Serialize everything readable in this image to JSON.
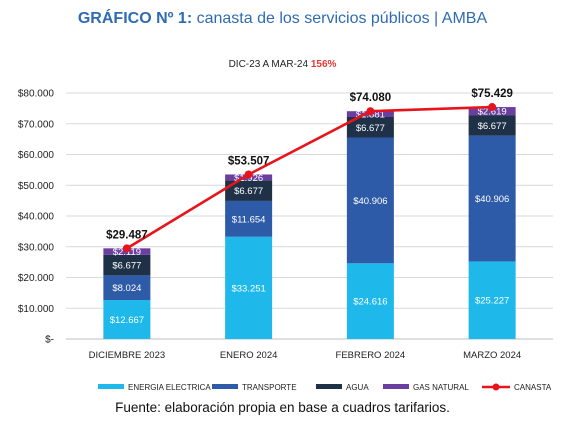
{
  "title": {
    "bold": "GRÁFICO Nº 1:",
    "text": " canasta de los servicios públicos | AMBA"
  },
  "subtitle": {
    "text": "DIC-23 A MAR-24",
    "pct": "156%"
  },
  "source": "Fuente: elaboración propia en base a cuadros tarifarios.",
  "chart_data": {
    "type": "bar",
    "stacked": true,
    "categories": [
      "DICIEMBRE 2023",
      "ENERO 2024",
      "FEBRERO 2024",
      "MARZO 2024"
    ],
    "ylim": [
      0,
      80000
    ],
    "yticks": [
      0,
      10000,
      20000,
      30000,
      40000,
      50000,
      60000,
      70000,
      80000
    ],
    "ytick_labels": [
      "$-",
      "$10.000",
      "$20.000",
      "$30.000",
      "$40.000",
      "$50.000",
      "$60.000",
      "$70.000",
      "$80.000"
    ],
    "grid": true,
    "legend_position": "bottom",
    "series": [
      {
        "name": "ENERGIA ELECTRICA",
        "color": "#1eb8ea",
        "label_color": "#ffffff",
        "values": [
          12667,
          33251,
          24616,
          25227
        ],
        "labels": [
          "$12.667",
          "$33.251",
          "$24.616",
          "$25.227"
        ]
      },
      {
        "name": "TRANSPORTE",
        "color": "#2e5ba8",
        "label_color": "#ffffff",
        "values": [
          8024,
          11654,
          40906,
          40906
        ],
        "labels": [
          "$8.024",
          "$11.654",
          "$40.906",
          "$40.906"
        ]
      },
      {
        "name": "AGUA",
        "color": "#1f3147",
        "label_color": "#ffffff",
        "values": [
          6677,
          6677,
          6677,
          6677
        ],
        "labels": [
          "$6.677",
          "$6.677",
          "$6.677",
          "$6.677"
        ]
      },
      {
        "name": "GAS NATURAL",
        "color": "#6b3fa0",
        "label_color": "#ffffff",
        "values": [
          2119,
          1926,
          1881,
          2619
        ],
        "labels": [
          "$2.119",
          "$1.926",
          "$1.881",
          "$2.619"
        ]
      }
    ],
    "line": {
      "name": "CANASTA",
      "color": "#e8141b",
      "values": [
        29487,
        53507,
        74080,
        75429
      ],
      "labels": [
        "$29.487",
        "$53.507",
        "$74.080",
        "$75.429"
      ]
    }
  }
}
